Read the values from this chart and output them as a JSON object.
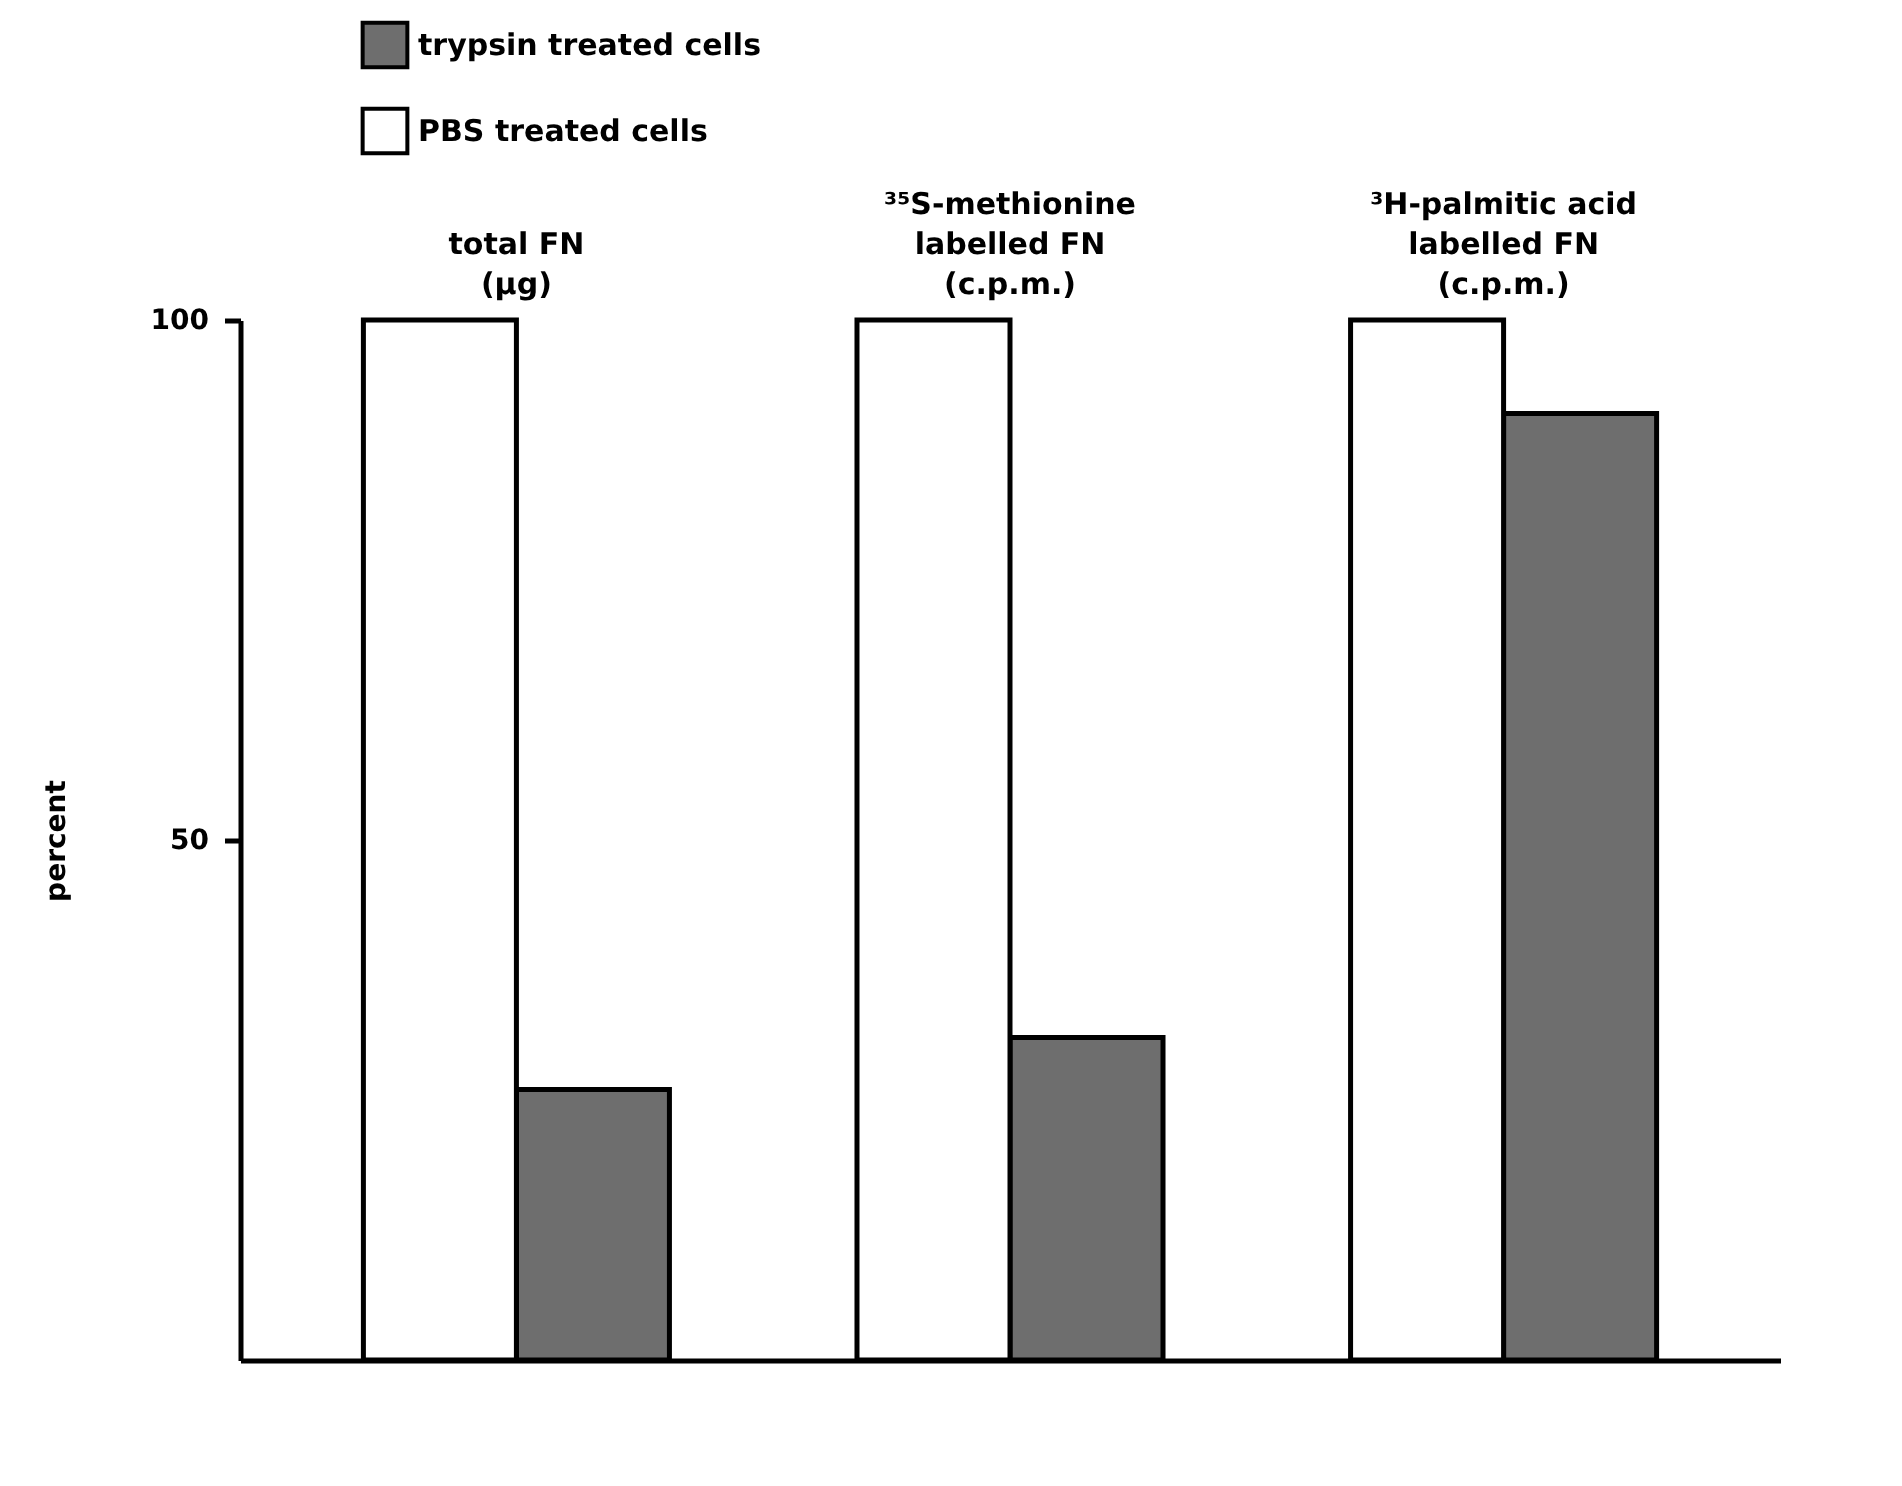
{
  "chart_data": {
    "type": "bar",
    "ylabel": "percent",
    "categories": [
      "total FN\n(µg)",
      "³⁵S-methionine\nlabelled FN\n(c.p.m.)",
      "³H-palmitic acid\nlabelled FN\n(c.p.m.)"
    ],
    "series": [
      {
        "name": "trypsin treated cells",
        "color": "#6e6e6e",
        "values": [
          26,
          31,
          91
        ]
      },
      {
        "name": "PBS treated cells",
        "color": "#ffffff",
        "values": [
          100,
          100,
          100
        ]
      }
    ],
    "ylim": [
      0,
      100
    ],
    "yticks": [
      50,
      100
    ],
    "grid": false,
    "legend": "top left"
  }
}
